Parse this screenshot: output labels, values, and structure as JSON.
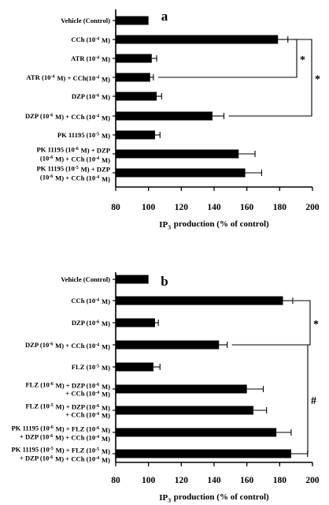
{
  "chart_data": [
    {
      "type": "bar",
      "orientation": "horizontal",
      "panel_label": "a",
      "xlabel": "IP3 production (% of control)",
      "xlim": [
        80,
        200
      ],
      "xticks": [
        80,
        100,
        120,
        140,
        160,
        180,
        200
      ],
      "bar_color": "#000000",
      "categories": [
        [
          "Vehicle (Control)"
        ],
        [
          "CCh (10-4 M)"
        ],
        [
          "ATR (10-4 M)"
        ],
        [
          "ATR (10-4 M) + CCh(10-4 M)"
        ],
        [
          "DZP (10-6 M)"
        ],
        [
          "DZP (10-6 M) + CCh (10-4 M)"
        ],
        [
          "PK 11195 (10-5 M)"
        ],
        [
          "PK 11195 (10-6 M) + DZP",
          "(10-6 M) + CCh (10-4 M)"
        ],
        [
          "PK 11195 (10-5 M) + DZP",
          "(10-6 M) + CCh (10-4 M)"
        ]
      ],
      "values": [
        100,
        179,
        102,
        101,
        105,
        139,
        104,
        155,
        159
      ],
      "errors": [
        0,
        6,
        3,
        2,
        3,
        7,
        3,
        10,
        10
      ],
      "significance": [
        {
          "symbol": "*",
          "from": 1,
          "to": 3
        },
        {
          "symbol": "*",
          "from": 1,
          "to": 5
        }
      ]
    },
    {
      "type": "bar",
      "orientation": "horizontal",
      "panel_label": "b",
      "xlabel": "IP3 production (% of control)",
      "xlim": [
        80,
        200
      ],
      "xticks": [
        80,
        100,
        120,
        140,
        160,
        180,
        200
      ],
      "bar_color": "#000000",
      "categories": [
        [
          "Vehicle (Control)"
        ],
        [
          "CCh (10-4 M)"
        ],
        [
          "DZP (10-6 M)"
        ],
        [
          "DZP (10-6 M) + CCh (10-4 M)"
        ],
        [
          "FLZ (10-5 M)"
        ],
        [
          "FLZ (10-6 M) + DZP (10-6 M)",
          "+ CCh (10-4 M)"
        ],
        [
          "FLZ (10-5 M) + DZP (10-6 M)",
          "+ CCh (10-4 M)"
        ],
        [
          "PK 11195 (10-6 M) + FLZ (10-6 M)",
          "+ DZP (10-6 M) + CCh (10-4 M)"
        ],
        [
          "PK 11195 (10-5 M) + FLZ (10-5 M)",
          "+ DZP (10-6 M) + CCh (10-4 M)"
        ]
      ],
      "values": [
        100,
        182,
        104,
        143,
        103,
        160,
        164,
        178,
        187
      ],
      "errors": [
        0,
        6,
        2,
        5,
        4,
        10,
        8,
        9,
        10
      ],
      "significance": [
        {
          "symbol": "*",
          "from": 1,
          "to": 3
        },
        {
          "symbol": "#",
          "from": 3,
          "to": 8
        }
      ]
    }
  ]
}
